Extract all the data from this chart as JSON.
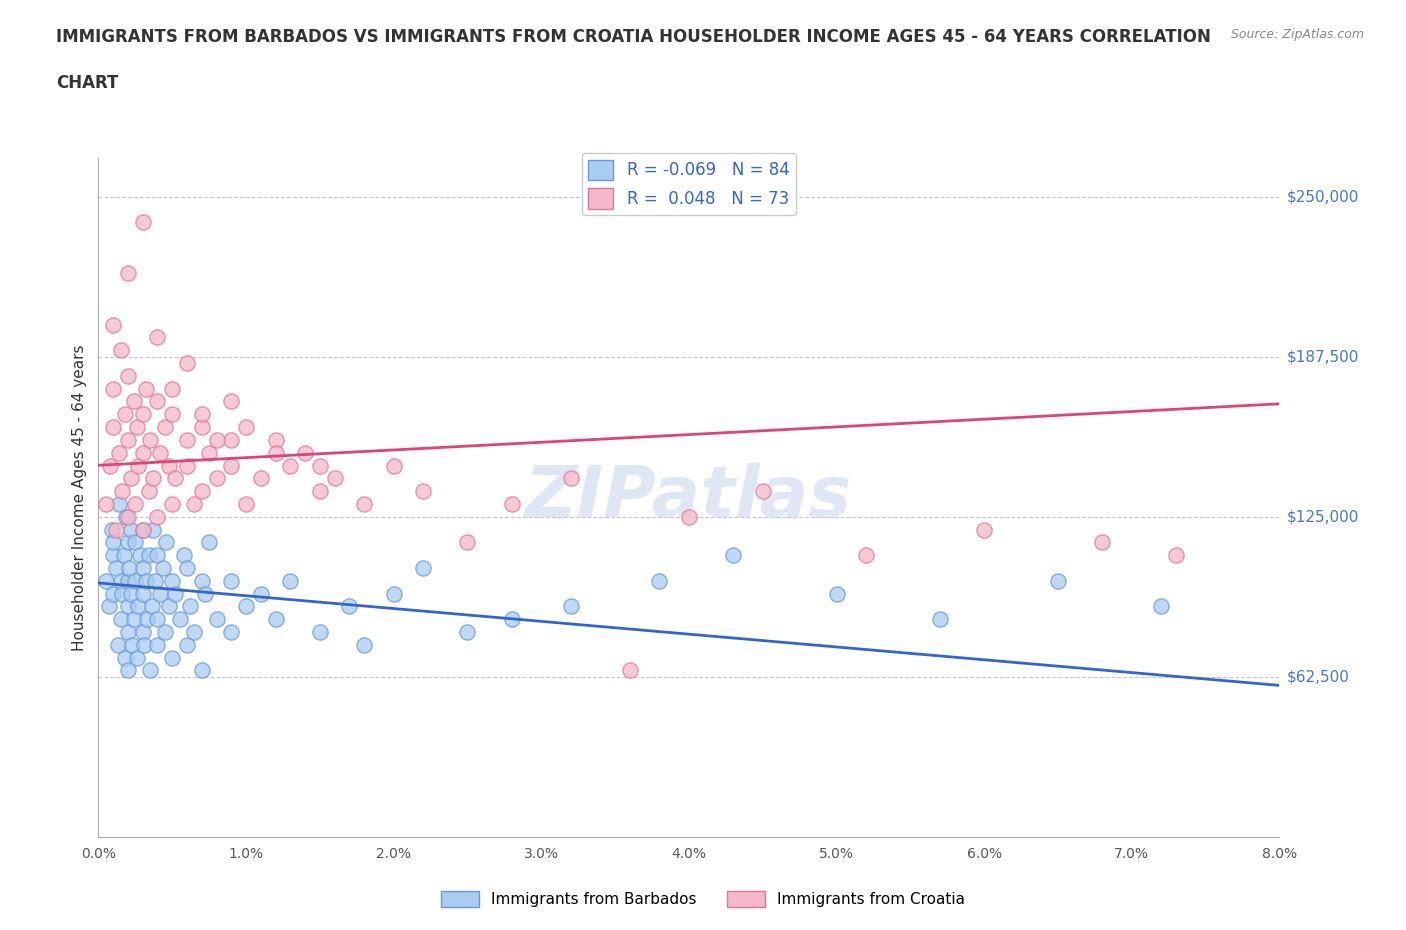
{
  "title_line1": "IMMIGRANTS FROM BARBADOS VS IMMIGRANTS FROM CROATIA HOUSEHOLDER INCOME AGES 45 - 64 YEARS CORRELATION",
  "title_line2": "CHART",
  "source": "Source: ZipAtlas.com",
  "ylabel": "Householder Income Ages 45 - 64 years",
  "xlim": [
    0.0,
    0.08
  ],
  "ylim": [
    0,
    265000
  ],
  "yticks": [
    0,
    62500,
    125000,
    187500,
    250000
  ],
  "ytick_labels": [
    "",
    "$62,500",
    "$125,000",
    "$187,500",
    "$250,000"
  ],
  "xticks": [
    0.0,
    0.01,
    0.02,
    0.03,
    0.04,
    0.05,
    0.06,
    0.07,
    0.08
  ],
  "xtick_labels": [
    "0.0%",
    "1.0%",
    "2.0%",
    "3.0%",
    "4.0%",
    "5.0%",
    "6.0%",
    "7.0%",
    "8.0%"
  ],
  "barbados_color": "#aaccf0",
  "barbados_edge": "#6699dd",
  "croatia_color": "#f5b8c8",
  "croatia_edge": "#dd7799",
  "trend_barbados_color": "#3366cc",
  "trend_croatia_color": "#dd4477",
  "R_barbados": -0.069,
  "N_barbados": 84,
  "R_croatia": 0.048,
  "N_croatia": 73,
  "watermark": "ZIPatlas",
  "background_color": "#ffffff",
  "barbados_x": [
    0.0005,
    0.0007,
    0.0009,
    0.001,
    0.001,
    0.001,
    0.0012,
    0.0013,
    0.0014,
    0.0015,
    0.0015,
    0.0016,
    0.0017,
    0.0018,
    0.0019,
    0.002,
    0.002,
    0.002,
    0.002,
    0.002,
    0.0021,
    0.0022,
    0.0022,
    0.0023,
    0.0024,
    0.0025,
    0.0025,
    0.0026,
    0.0027,
    0.0028,
    0.003,
    0.003,
    0.003,
    0.003,
    0.0031,
    0.0032,
    0.0033,
    0.0034,
    0.0035,
    0.0036,
    0.0037,
    0.0038,
    0.004,
    0.004,
    0.004,
    0.0042,
    0.0044,
    0.0045,
    0.0046,
    0.0048,
    0.005,
    0.005,
    0.0052,
    0.0055,
    0.0058,
    0.006,
    0.006,
    0.0062,
    0.0065,
    0.007,
    0.007,
    0.0072,
    0.0075,
    0.008,
    0.009,
    0.009,
    0.01,
    0.011,
    0.012,
    0.013,
    0.015,
    0.017,
    0.018,
    0.02,
    0.022,
    0.025,
    0.028,
    0.032,
    0.038,
    0.043,
    0.05,
    0.057,
    0.065,
    0.072
  ],
  "barbados_y": [
    100000,
    90000,
    120000,
    95000,
    110000,
    115000,
    105000,
    75000,
    130000,
    85000,
    100000,
    95000,
    110000,
    70000,
    125000,
    90000,
    100000,
    115000,
    80000,
    65000,
    105000,
    95000,
    120000,
    75000,
    85000,
    100000,
    115000,
    70000,
    90000,
    110000,
    105000,
    80000,
    95000,
    120000,
    75000,
    100000,
    85000,
    110000,
    65000,
    90000,
    120000,
    100000,
    85000,
    110000,
    75000,
    95000,
    105000,
    80000,
    115000,
    90000,
    100000,
    70000,
    95000,
    85000,
    110000,
    75000,
    105000,
    90000,
    80000,
    100000,
    65000,
    95000,
    115000,
    85000,
    100000,
    80000,
    90000,
    95000,
    85000,
    100000,
    80000,
    90000,
    75000,
    95000,
    105000,
    80000,
    85000,
    90000,
    100000,
    110000,
    95000,
    85000,
    100000,
    90000
  ],
  "croatia_x": [
    0.0005,
    0.0008,
    0.001,
    0.001,
    0.0012,
    0.0014,
    0.0015,
    0.0016,
    0.0018,
    0.002,
    0.002,
    0.002,
    0.0022,
    0.0024,
    0.0025,
    0.0026,
    0.0027,
    0.003,
    0.003,
    0.003,
    0.0032,
    0.0034,
    0.0035,
    0.0037,
    0.004,
    0.004,
    0.0042,
    0.0045,
    0.0048,
    0.005,
    0.005,
    0.0052,
    0.006,
    0.006,
    0.0065,
    0.007,
    0.007,
    0.0075,
    0.008,
    0.009,
    0.009,
    0.01,
    0.011,
    0.012,
    0.013,
    0.014,
    0.015,
    0.016,
    0.018,
    0.02,
    0.022,
    0.025,
    0.028,
    0.032,
    0.036,
    0.04,
    0.045,
    0.052,
    0.06,
    0.068,
    0.073,
    0.001,
    0.002,
    0.003,
    0.004,
    0.005,
    0.006,
    0.007,
    0.008,
    0.009,
    0.01,
    0.012,
    0.015
  ],
  "croatia_y": [
    130000,
    145000,
    160000,
    175000,
    120000,
    150000,
    190000,
    135000,
    165000,
    125000,
    155000,
    180000,
    140000,
    170000,
    130000,
    160000,
    145000,
    120000,
    165000,
    150000,
    175000,
    135000,
    155000,
    140000,
    170000,
    125000,
    150000,
    160000,
    145000,
    130000,
    165000,
    140000,
    155000,
    145000,
    130000,
    160000,
    135000,
    150000,
    140000,
    155000,
    145000,
    130000,
    140000,
    155000,
    145000,
    150000,
    135000,
    140000,
    130000,
    145000,
    135000,
    115000,
    130000,
    140000,
    65000,
    125000,
    135000,
    110000,
    120000,
    115000,
    110000,
    200000,
    220000,
    240000,
    195000,
    175000,
    185000,
    165000,
    155000,
    170000,
    160000,
    150000,
    145000
  ]
}
